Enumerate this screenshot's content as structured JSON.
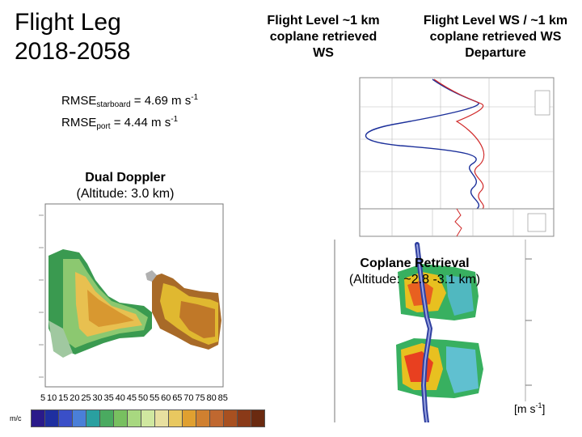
{
  "title": {
    "line1": "Flight Leg",
    "line2": "2018-2058"
  },
  "headers": {
    "flight_level": "Flight Level ~1 km coplane retrieved WS",
    "departure": "Flight Level WS / ~1 km coplane retrieved WS Departure"
  },
  "rmse": {
    "starboard": {
      "prefix": "RMSE",
      "sub": "starboard",
      "value": " = 4.69 m s",
      "exp": "-1"
    },
    "port": {
      "prefix": "RMSE",
      "sub": "port",
      "value": " = 4.44 m s",
      "exp": "-1"
    }
  },
  "dual_doppler": {
    "name": "Dual Doppler",
    "altitude": "(Altitude: 3.0 km)"
  },
  "coplane": {
    "name": "Coplane Retrieval",
    "altitude": "(Altitude: ~2.8 -3.1 km)"
  },
  "colorbar": {
    "ticks": [
      "5",
      "10",
      "15",
      "20",
      "25",
      "30",
      "35",
      "40",
      "45",
      "50",
      "55",
      "60",
      "65",
      "70",
      "75",
      "80",
      "85"
    ],
    "unit": "m/c",
    "colors": [
      "#2a1a8a",
      "#1e2fa0",
      "#3a4fc8",
      "#4a7fd8",
      "#2aa0a0",
      "#4aaa60",
      "#78c060",
      "#a8d880",
      "#d0e8a0",
      "#e8e0a0",
      "#e8c860",
      "#e0a030",
      "#d08030",
      "#c06830",
      "#a85020",
      "#8a3a18",
      "#6a2a10"
    ]
  },
  "plot_units": {
    "base": "[m s",
    "exp": "-1",
    "close": "]"
  }
}
